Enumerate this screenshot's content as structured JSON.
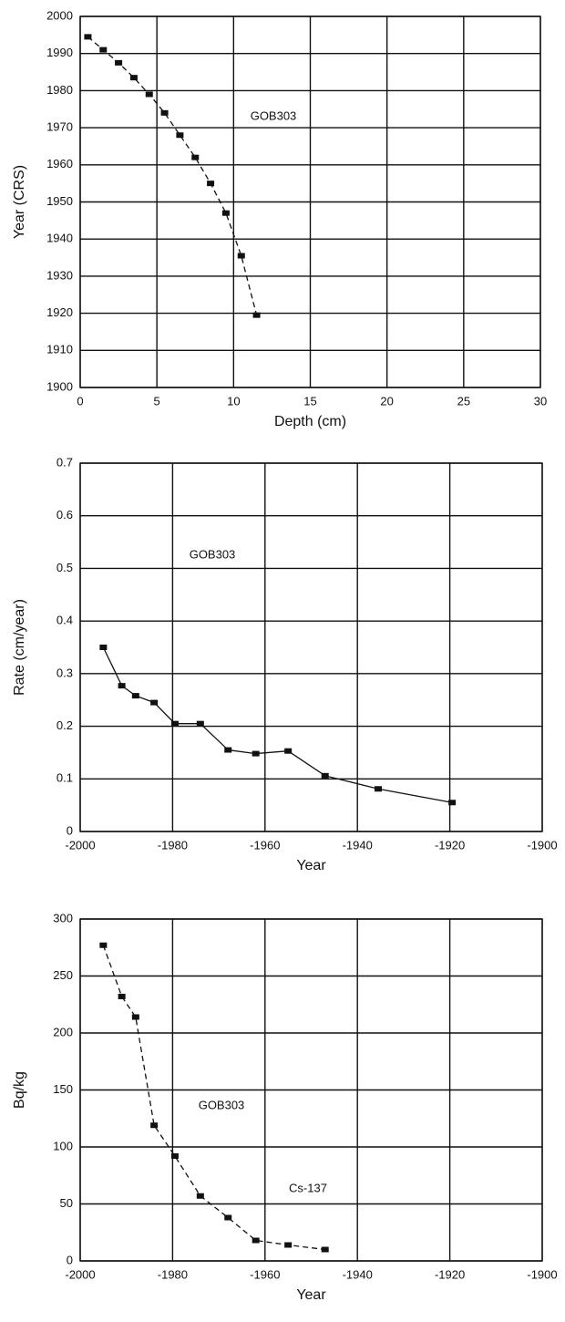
{
  "chart_data": [
    {
      "type": "line",
      "x_label": "Depth (cm)",
      "y_label": "Year (CRS)",
      "annotations": [
        "GOB303"
      ],
      "x": [
        0.5,
        1.5,
        2.5,
        3.5,
        4.5,
        5.5,
        6.5,
        7.5,
        8.5,
        9.5,
        10.5,
        11.5
      ],
      "series": [
        {
          "color": "#111111",
          "line_style": "dashed",
          "values": [
            1994.5,
            1991,
            1987.5,
            1983.5,
            1979,
            1974,
            1968,
            1962,
            1955,
            1947,
            1935.5,
            1919.5
          ]
        }
      ],
      "xlim": [
        0,
        30
      ],
      "xticks": [
        0,
        5,
        10,
        15,
        20,
        25,
        30
      ],
      "ylim": [
        1900,
        2000
      ],
      "yticks": [
        1900,
        1910,
        1920,
        1930,
        1940,
        1950,
        1960,
        1970,
        1980,
        1990,
        2000
      ],
      "grid": true
    },
    {
      "type": "line",
      "x_label": "Year",
      "y_label": "Rate (cm/year)",
      "annotations": [
        "GOB303"
      ],
      "x": [
        -1995,
        -1991,
        -1988,
        -1984,
        -1979.5,
        -1974,
        -1968,
        -1962,
        -1955,
        -1947,
        -1935.5,
        -1919.5
      ],
      "series": [
        {
          "color": "#111111",
          "line_style": "solid",
          "values": [
            0.35,
            0.277,
            0.258,
            0.245,
            0.205,
            0.205,
            0.155,
            0.148,
            0.153,
            0.106,
            0.081,
            0.055
          ]
        }
      ],
      "xlim": [
        -2000,
        -1900
      ],
      "xticks": [
        -2000,
        -1980,
        -1960,
        -1940,
        -1920,
        -1900
      ],
      "ylim": [
        0,
        0.7
      ],
      "yticks": [
        0,
        0.1,
        0.2,
        0.3,
        0.4,
        0.5,
        0.6,
        0.7
      ],
      "grid": true
    },
    {
      "type": "line",
      "x_label": "Year",
      "y_label": "Bq/kg",
      "annotations": [
        "GOB303",
        "Cs-137"
      ],
      "x": [
        -1995,
        -1991,
        -1988,
        -1984,
        -1979.5,
        -1974,
        -1968,
        -1962,
        -1955,
        -1947
      ],
      "series": [
        {
          "color": "#111111",
          "line_style": "dashed",
          "values": [
            277,
            232,
            214,
            119,
            92,
            57,
            38,
            18,
            14,
            10
          ]
        }
      ],
      "xlim": [
        -2000,
        -1900
      ],
      "xticks": [
        -2000,
        -1980,
        -1960,
        -1940,
        -1920,
        -1900
      ],
      "ylim": [
        0,
        300
      ],
      "yticks": [
        0,
        50,
        100,
        150,
        200,
        250,
        300
      ],
      "grid": true
    }
  ]
}
